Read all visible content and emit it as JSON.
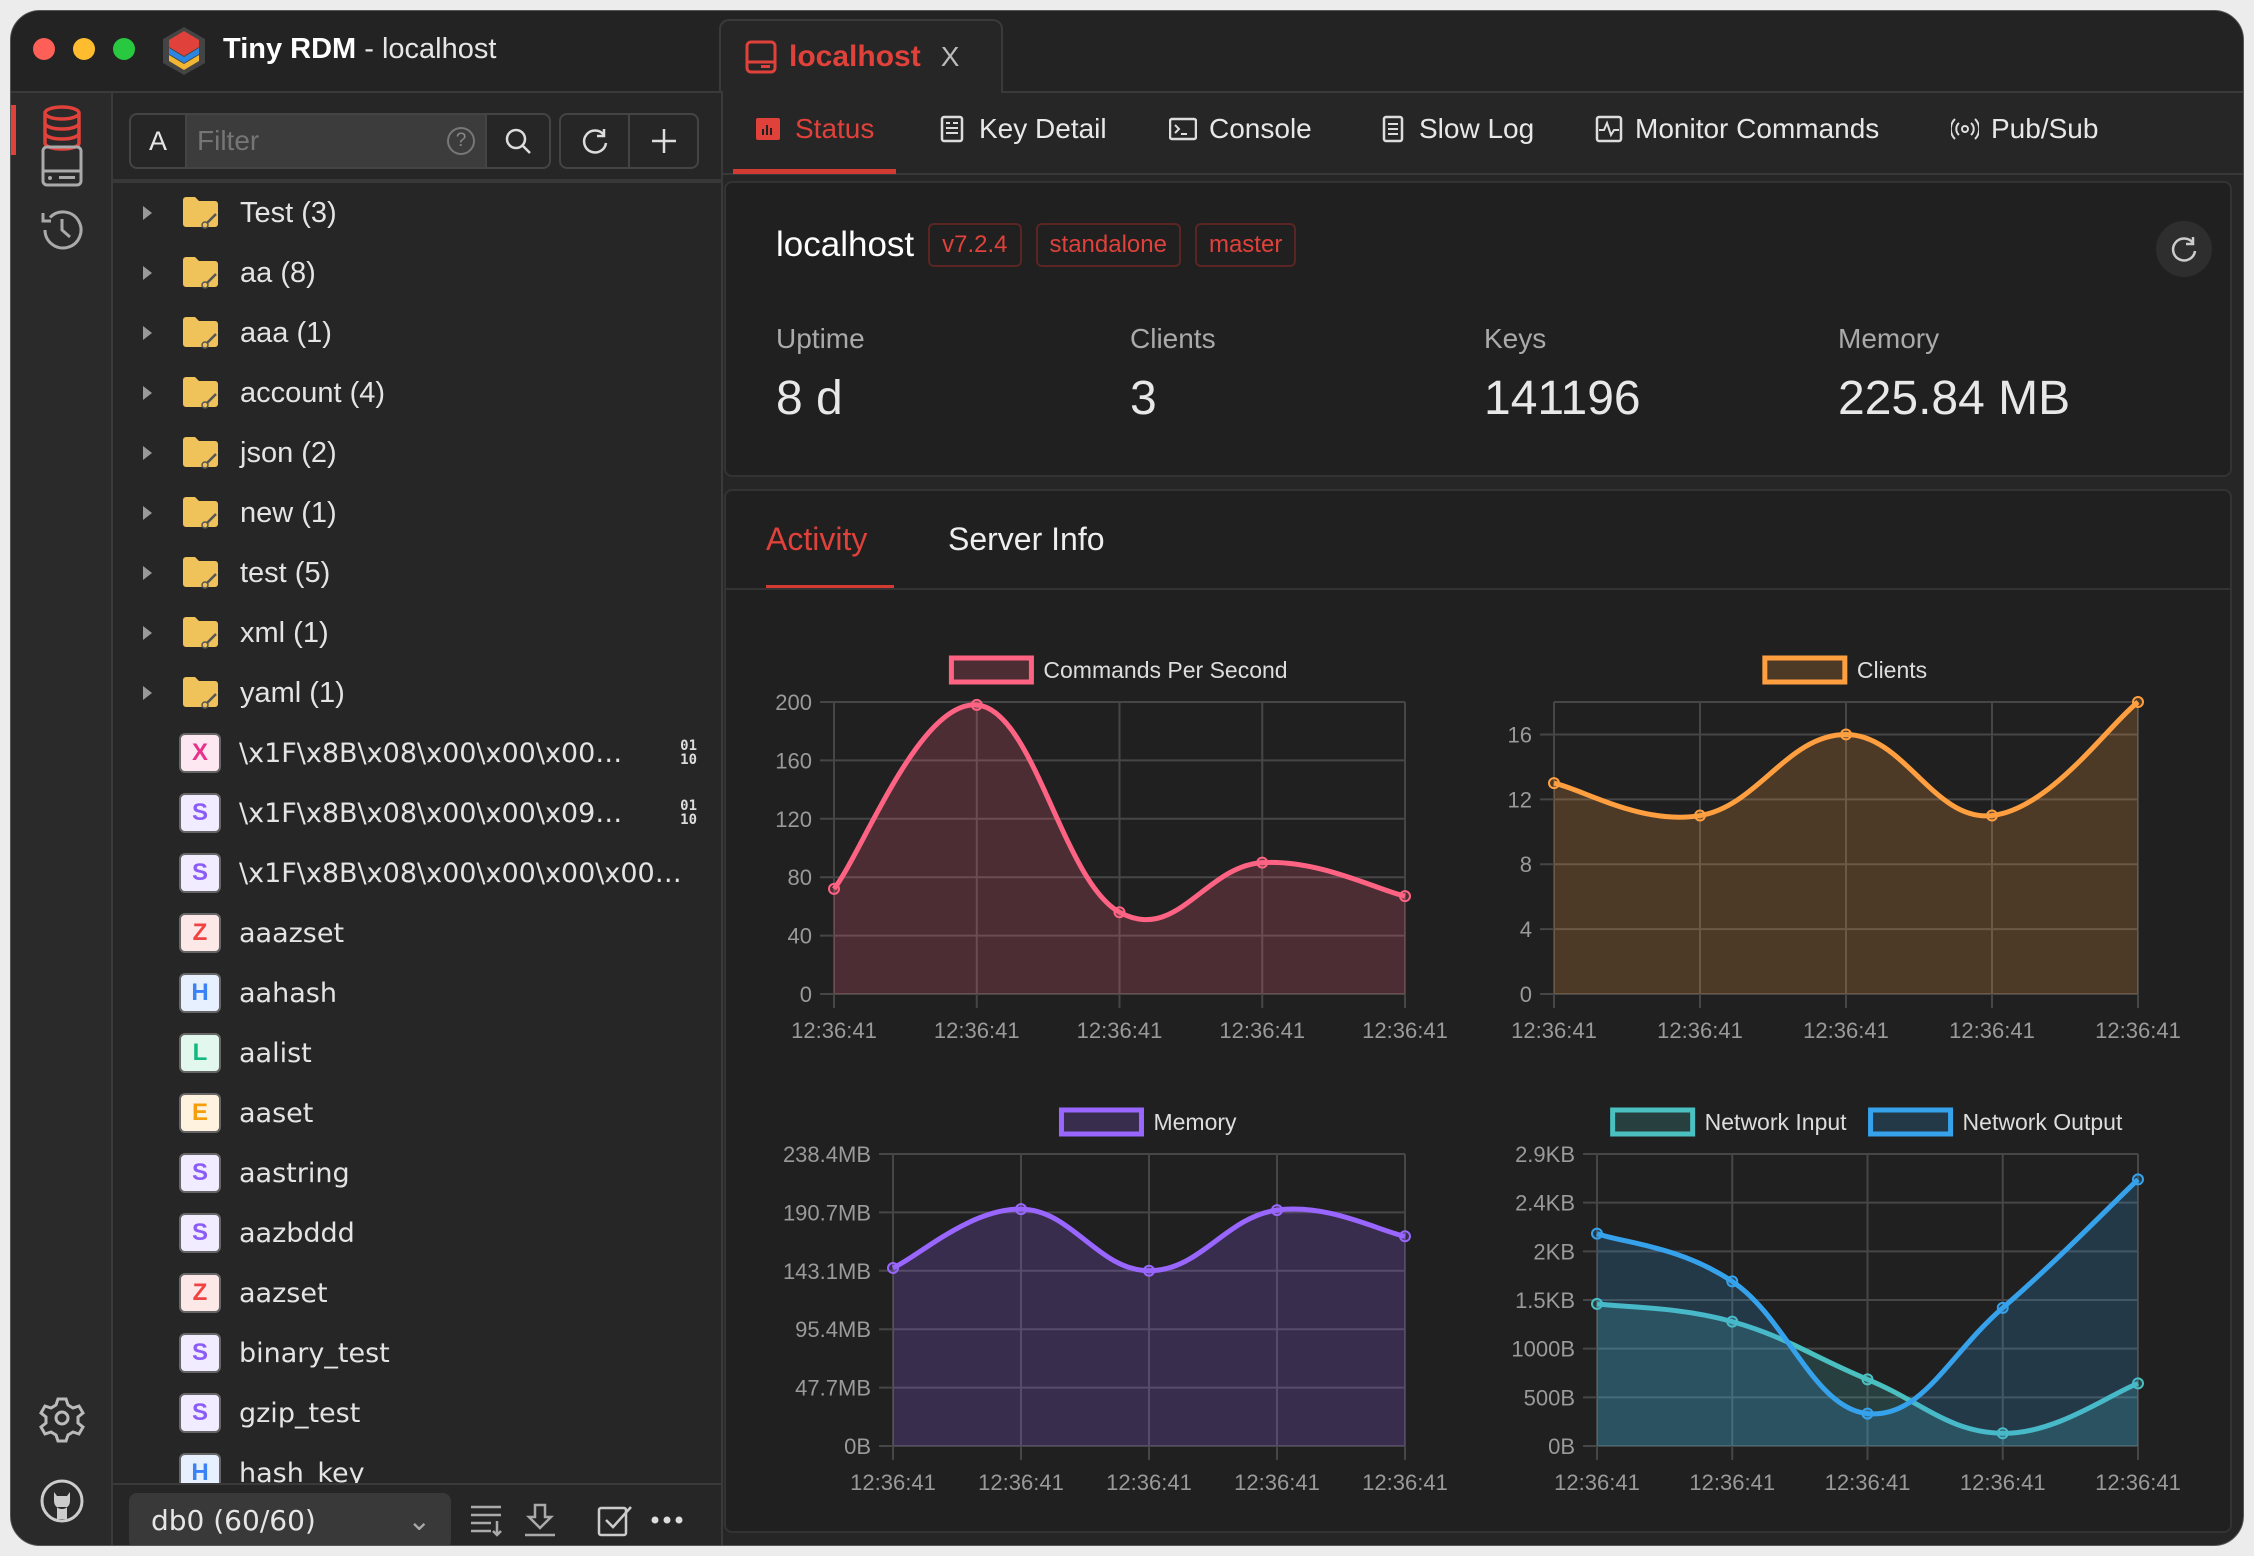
{
  "window": {
    "app_name": "Tiny RDM",
    "title_suffix": "- localhost"
  },
  "connection_tab": {
    "label": "localhost",
    "close": "X"
  },
  "sidebar": {
    "filter_mode": "A",
    "filter_placeholder": "Filter",
    "filter_help": "?",
    "folders": [
      {
        "label": "Test (3)"
      },
      {
        "label": "aa (8)"
      },
      {
        "label": "aaa (1)"
      },
      {
        "label": "account (4)"
      },
      {
        "label": "json (2)"
      },
      {
        "label": "new (1)"
      },
      {
        "label": "test (5)"
      },
      {
        "label": "xml (1)"
      },
      {
        "label": "yaml (1)"
      }
    ],
    "keys": [
      {
        "type": "X",
        "name": "\\x1F\\x8B\\x08\\x00\\x00\\x00\\x0...",
        "binary": true,
        "binary_label": "01\n10"
      },
      {
        "type": "S",
        "name": "\\x1F\\x8B\\x08\\x00\\x00\\x09n\\x8...",
        "binary": true,
        "binary_label": "01\n10"
      },
      {
        "type": "S",
        "name": "\\x1F\\x8B\\x08\\x00\\x00\\x00\\x00\\x0..."
      },
      {
        "type": "Z",
        "name": "aaazset"
      },
      {
        "type": "H",
        "name": "aahash"
      },
      {
        "type": "L",
        "name": "aalist"
      },
      {
        "type": "E",
        "name": "aaset"
      },
      {
        "type": "S",
        "name": "aastring"
      },
      {
        "type": "S",
        "name": "aazbddd"
      },
      {
        "type": "Z",
        "name": "aazset"
      },
      {
        "type": "S",
        "name": "binary_test"
      },
      {
        "type": "S",
        "name": "gzip_test"
      },
      {
        "type": "H",
        "name": "hash_key"
      }
    ],
    "type_colors": {
      "X": {
        "fg": "#e8318a",
        "bg": "#fde7f1"
      },
      "S": {
        "fg": "#8b5cf6",
        "bg": "#f1ecff"
      },
      "Z": {
        "fg": "#ef4444",
        "bg": "#fde8e8"
      },
      "H": {
        "fg": "#3b82f6",
        "bg": "#e6f0ff"
      },
      "L": {
        "fg": "#10b981",
        "bg": "#e2f7ee"
      },
      "E": {
        "fg": "#f59e0b",
        "bg": "#fff3e0"
      }
    },
    "db_select": "db0 (60/60)"
  },
  "tabs": [
    {
      "label": "Status",
      "icon": "bar-chart-icon",
      "active": true
    },
    {
      "label": "Key Detail",
      "icon": "list-icon"
    },
    {
      "label": "Console",
      "icon": "terminal-icon"
    },
    {
      "label": "Slow Log",
      "icon": "log-icon"
    },
    {
      "label": "Monitor Commands",
      "icon": "pulse-icon"
    },
    {
      "label": "Pub/Sub",
      "icon": "broadcast-icon"
    }
  ],
  "server": {
    "name": "localhost",
    "tags": [
      "v7.2.4",
      "standalone",
      "master"
    ],
    "stats": [
      {
        "label": "Uptime",
        "value": "8 d"
      },
      {
        "label": "Clients",
        "value": "3"
      },
      {
        "label": "Keys",
        "value": "141196"
      },
      {
        "label": "Memory",
        "value": "225.84 MB"
      }
    ]
  },
  "subtabs": [
    {
      "label": "Activity",
      "active": true
    },
    {
      "label": "Server Info"
    }
  ],
  "accent": "#e0413a",
  "chart_data": [
    {
      "type": "area",
      "categories": [
        "12:36:41",
        "12:36:41",
        "12:36:41",
        "12:36:41",
        "12:36:41"
      ],
      "series": [
        {
          "name": "Commands Per Second",
          "color": "#ff6384",
          "values": [
            72,
            198,
            56,
            90,
            67
          ]
        }
      ],
      "ylim": [
        0,
        200
      ],
      "yticks": [
        "0",
        "40",
        "80",
        "120",
        "160",
        "200"
      ],
      "grid": true,
      "legend": "top"
    },
    {
      "type": "area",
      "categories": [
        "12:36:41",
        "12:36:41",
        "12:36:41",
        "12:36:41",
        "12:36:41"
      ],
      "series": [
        {
          "name": "Clients",
          "color": "#ff9f40",
          "values": [
            13,
            11,
            16,
            11,
            18
          ]
        }
      ],
      "ylim": [
        0,
        18
      ],
      "yticks": [
        "0",
        "4",
        "8",
        "12",
        "16"
      ],
      "ytick_step": 4,
      "grid": true,
      "legend": "top"
    },
    {
      "type": "area",
      "categories": [
        "12:36:41",
        "12:36:41",
        "12:36:41",
        "12:36:41",
        "12:36:41"
      ],
      "series": [
        {
          "name": "Memory",
          "color": "#9966ff",
          "values": [
            145.3,
            193.4,
            143.1,
            192.6,
            171.2
          ]
        }
      ],
      "ylim": [
        0,
        238.4
      ],
      "yticks": [
        "0B",
        "47.7MB",
        "95.4MB",
        "143.1MB",
        "190.7MB",
        "238.4MB"
      ],
      "grid": true,
      "legend": "top"
    },
    {
      "type": "area",
      "categories": [
        "12:36:41",
        "12:36:41",
        "12:36:41",
        "12:36:41",
        "12:36:41"
      ],
      "series": [
        {
          "name": "Network Input",
          "color": "#4bc0c0",
          "values": [
            1460,
            1278,
            684,
            131,
            643
          ]
        },
        {
          "name": "Network Output",
          "color": "#36a2eb",
          "values": [
            2182,
            1691,
            333,
            1419,
            2739
          ]
        }
      ],
      "ylim": [
        0,
        3000
      ],
      "yticks": [
        "0B",
        "500B",
        "1000B",
        "1.5KB",
        "2KB",
        "2.4KB",
        "2.9KB"
      ],
      "grid": true,
      "legend": "top"
    }
  ]
}
